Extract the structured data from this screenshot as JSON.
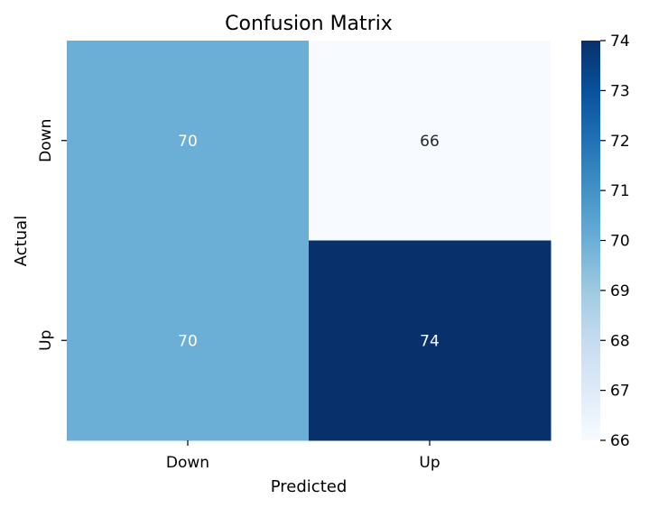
{
  "chart_data": {
    "type": "heatmap",
    "title": "Confusion Matrix",
    "xlabel": "Predicted",
    "ylabel": "Actual",
    "x_categories": [
      "Down",
      "Up"
    ],
    "y_categories": [
      "Down",
      "Up"
    ],
    "values": [
      [
        70,
        66
      ],
      [
        70,
        74
      ]
    ],
    "colorbar": {
      "min": 66,
      "max": 74,
      "ticks": [
        "66",
        "67",
        "68",
        "69",
        "70",
        "71",
        "72",
        "73",
        "74"
      ]
    },
    "colormap": "Blues",
    "colors": {
      "low": "#f7fbff",
      "mid": "#6baed6",
      "high": "#08306b",
      "text_light": "#ffffff",
      "text_dark": "#262626"
    }
  }
}
